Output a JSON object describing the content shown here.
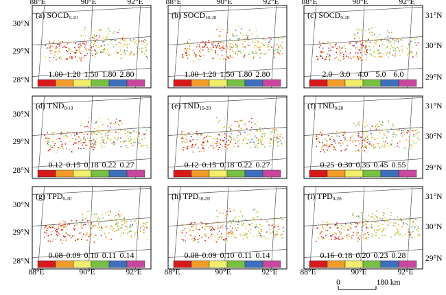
{
  "panels": [
    {
      "id": "a",
      "label": "(a) SOCD",
      "sub": "0-10",
      "ticks": [
        "1.00",
        "1.20",
        "1.50",
        "1.80",
        "2.80"
      ]
    },
    {
      "id": "b",
      "label": "(b) SOCD",
      "sub": "10-20",
      "ticks": [
        "1.00",
        "1.20",
        "1.50",
        "1.80",
        "2.80"
      ]
    },
    {
      "id": "c",
      "label": "(c) SOCD",
      "sub": "0-20",
      "ticks": [
        "2.0",
        "3.0",
        "4.0",
        "5.0",
        "6.0"
      ]
    },
    {
      "id": "d",
      "label": "(d) TND",
      "sub": "0-10",
      "ticks": [
        "0.12",
        "0.15",
        "0.18",
        "0.22",
        "0.27"
      ]
    },
    {
      "id": "e",
      "label": "(e) TND",
      "sub": "10-20",
      "ticks": [
        "0.12",
        "0.15",
        "0.18",
        "0.22",
        "0.27"
      ]
    },
    {
      "id": "f",
      "label": "(f) TND",
      "sub": "0-20",
      "ticks": [
        "0.25",
        "0.30",
        "0.35",
        "0.45",
        "0.55"
      ]
    },
    {
      "id": "g",
      "label": "(g) TPD",
      "sub": "0-10",
      "ticks": [
        "0.08",
        "0.09",
        "0.10",
        "0.11",
        "0.14"
      ]
    },
    {
      "id": "h",
      "label": "(h) TPD",
      "sub": "10-20",
      "ticks": [
        "0.08",
        "0.09",
        "0.10",
        "0.11",
        "0.14"
      ]
    },
    {
      "id": "i",
      "label": "(i) TPD",
      "sub": "0-20",
      "ticks": [
        "0.16",
        "0.18",
        "0.20",
        "0.23",
        "0.28"
      ]
    }
  ],
  "legend_colors": [
    "#d7191c",
    "#f39c2a",
    "#f2ee6a",
    "#77c043",
    "#3d6fbd",
    "#c9489e"
  ],
  "lat_left": [
    "30°N",
    "29°N",
    "28°N"
  ],
  "lat_right": [
    "31°N",
    "30°N",
    "29°N"
  ],
  "lon_top": [
    "88°E",
    "90°E",
    "92°E"
  ],
  "lon_bottom": [
    "88°E",
    "90°E",
    "92°E"
  ],
  "scale_bar": {
    "start": "0",
    "end": "180 km"
  },
  "point_colors": [
    "#d7191c",
    "#f39c2a",
    "#e6d94e",
    "#77c043",
    "#3d6fbd",
    "#c9489e"
  ]
}
